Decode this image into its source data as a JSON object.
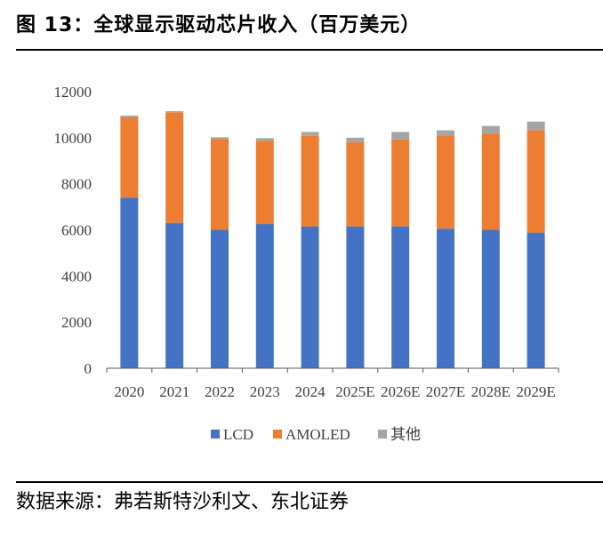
{
  "title": "图 13：全球显示驱动芯片收入（百万美元）",
  "source": "数据来源：弗若斯特沙利文、东北证券",
  "colors": {
    "LCD": "#4472C4",
    "AMOLED": "#ED7D31",
    "other": "#A5A5A5",
    "axis": "#595959",
    "text": "#404040"
  },
  "chart_data": {
    "type": "bar",
    "stacked": true,
    "title": "全球显示驱动芯片收入（百万美元）",
    "categories": [
      "2020",
      "2021",
      "2022",
      "2023",
      "2024",
      "2025E",
      "2026E",
      "2027E",
      "2028E",
      "2029E"
    ],
    "series": [
      {
        "name": "LCD",
        "values": [
          7400,
          6300,
          6000,
          6250,
          6150,
          6150,
          6150,
          6050,
          6000,
          5880
        ]
      },
      {
        "name": "AMOLED",
        "values": [
          3480,
          4800,
          3950,
          3620,
          3930,
          3650,
          3770,
          4020,
          4180,
          4450
        ]
      },
      {
        "name": "其他",
        "values": [
          80,
          50,
          70,
          110,
          170,
          200,
          330,
          250,
          330,
          370
        ]
      }
    ],
    "ylim": [
      0,
      12000
    ],
    "yticks": [
      "0",
      "2000",
      "4000",
      "6000",
      "8000",
      "10000",
      "12000"
    ],
    "legend": [
      "LCD",
      "AMOLED",
      "其他"
    ],
    "legend_position": "bottom",
    "grid": false
  }
}
